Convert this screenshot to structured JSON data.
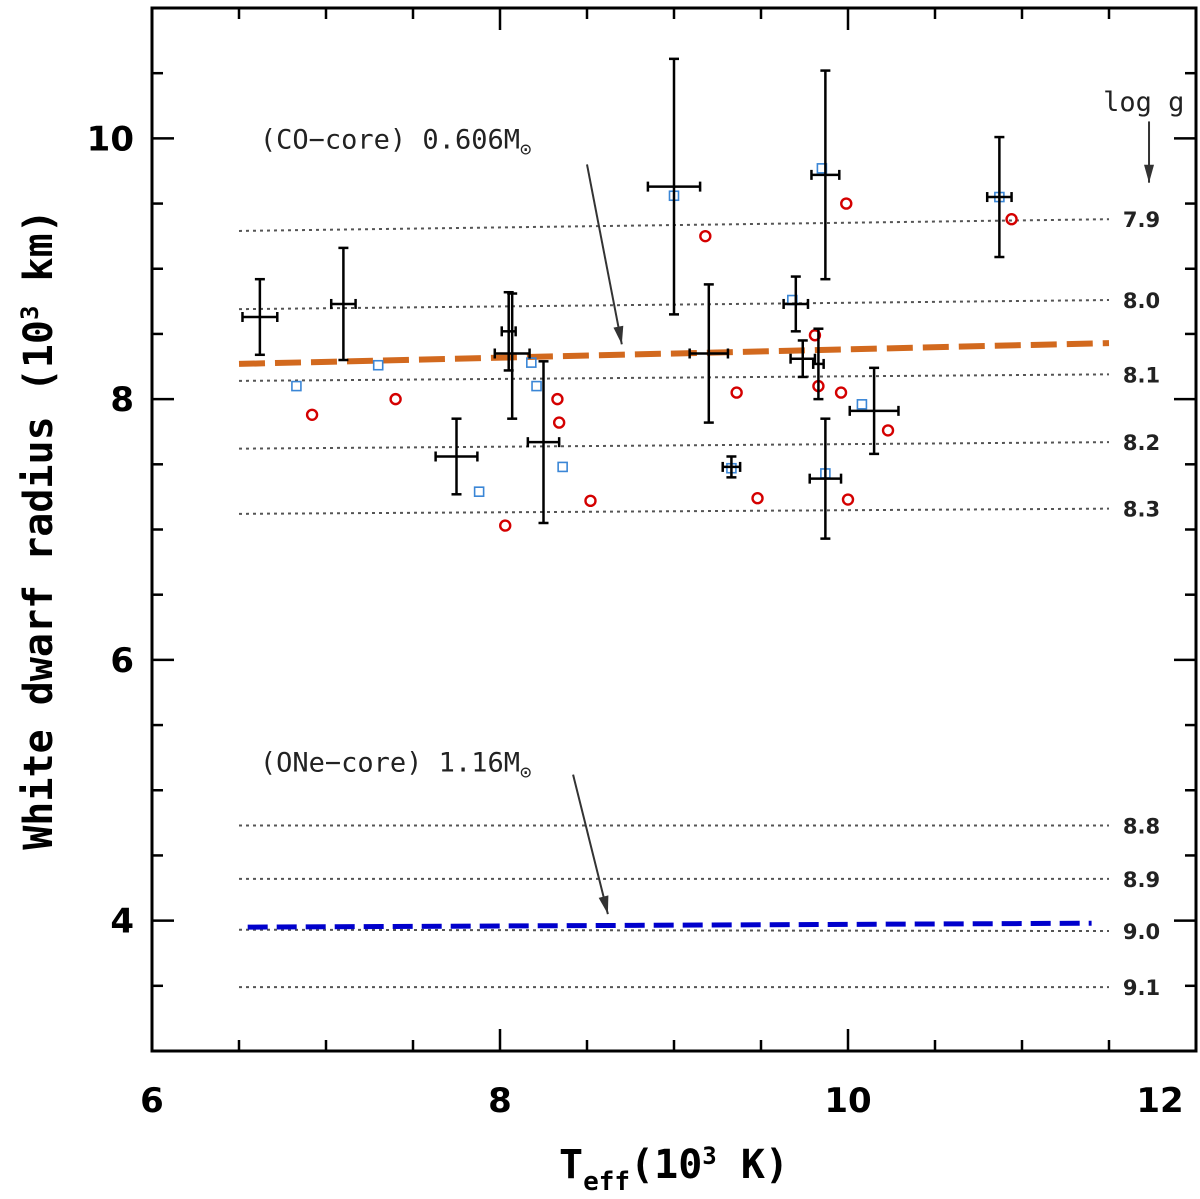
{
  "chart_data": {
    "type": "scatter",
    "title": "",
    "xlabel": "T_eff(10^3 K)",
    "xlabel_main": "T",
    "xlabel_sub": "eff",
    "xlabel_rest_a": "(10",
    "xlabel_sup": "3",
    "xlabel_rest_b": " K)",
    "ylabel": "White dwarf radius (10^3 km)",
    "ylabel_a": "White dwarf radius (10",
    "ylabel_sup": "3",
    "ylabel_b": " km)",
    "xlim": [
      6,
      12
    ],
    "ylim": [
      3,
      11
    ],
    "xticks": [
      6,
      8,
      10,
      12
    ],
    "yticks": [
      4,
      6,
      8,
      10
    ],
    "measurements": [
      {
        "x": 6.62,
        "y": 8.63,
        "xerr": 0.1,
        "yerr_lo": 0.29,
        "yerr_hi": 0.29
      },
      {
        "x": 7.1,
        "y": 8.73,
        "xerr": 0.07,
        "yerr_lo": 0.43,
        "yerr_hi": 0.43
      },
      {
        "x": 7.75,
        "y": 7.56,
        "xerr": 0.12,
        "yerr_lo": 0.29,
        "yerr_hi": 0.29
      },
      {
        "x": 8.05,
        "y": 8.52,
        "xerr": 0.04,
        "yerr_lo": 0.3,
        "yerr_hi": 0.3
      },
      {
        "x": 8.07,
        "y": 8.35,
        "xerr": 0.1,
        "yerr_lo": 0.5,
        "yerr_hi": 0.46
      },
      {
        "x": 8.25,
        "y": 7.67,
        "xerr": 0.09,
        "yerr_lo": 0.62,
        "yerr_hi": 0.62
      },
      {
        "x": 9.0,
        "y": 9.63,
        "xerr": 0.15,
        "yerr_lo": 0.98,
        "yerr_hi": 0.98
      },
      {
        "x": 9.2,
        "y": 8.35,
        "xerr": 0.11,
        "yerr_lo": 0.53,
        "yerr_hi": 0.53
      },
      {
        "x": 9.33,
        "y": 7.48,
        "xerr": 0.05,
        "yerr_lo": 0.08,
        "yerr_hi": 0.08
      },
      {
        "x": 9.7,
        "y": 8.73,
        "xerr": 0.07,
        "yerr_lo": 0.21,
        "yerr_hi": 0.21
      },
      {
        "x": 9.74,
        "y": 8.31,
        "xerr": 0.07,
        "yerr_lo": 0.14,
        "yerr_hi": 0.14
      },
      {
        "x": 9.83,
        "y": 8.27,
        "xerr": 0.03,
        "yerr_lo": 0.27,
        "yerr_hi": 0.27
      },
      {
        "x": 9.87,
        "y": 9.72,
        "xerr": 0.08,
        "yerr_lo": 0.8,
        "yerr_hi": 0.8
      },
      {
        "x": 9.87,
        "y": 7.39,
        "xerr": 0.09,
        "yerr_lo": 0.46,
        "yerr_hi": 0.46
      },
      {
        "x": 10.15,
        "y": 7.91,
        "xerr": 0.14,
        "yerr_lo": 0.33,
        "yerr_hi": 0.33
      },
      {
        "x": 10.87,
        "y": 9.55,
        "xerr": 0.07,
        "yerr_lo": 0.46,
        "yerr_hi": 0.46
      }
    ],
    "model_blue_squares": [
      {
        "x": 6.83,
        "y": 8.1
      },
      {
        "x": 7.3,
        "y": 8.26
      },
      {
        "x": 7.88,
        "y": 7.29
      },
      {
        "x": 8.18,
        "y": 8.28
      },
      {
        "x": 8.21,
        "y": 8.1
      },
      {
        "x": 8.36,
        "y": 7.48
      },
      {
        "x": 9.0,
        "y": 9.56
      },
      {
        "x": 9.33,
        "y": 7.47
      },
      {
        "x": 9.68,
        "y": 8.76
      },
      {
        "x": 9.85,
        "y": 9.77
      },
      {
        "x": 9.87,
        "y": 7.43
      },
      {
        "x": 10.08,
        "y": 7.96
      },
      {
        "x": 10.87,
        "y": 9.55
      }
    ],
    "model_red_circles": [
      {
        "x": 6.92,
        "y": 7.88
      },
      {
        "x": 7.4,
        "y": 8.0
      },
      {
        "x": 8.03,
        "y": 7.03
      },
      {
        "x": 8.33,
        "y": 8.0
      },
      {
        "x": 8.34,
        "y": 7.82
      },
      {
        "x": 8.52,
        "y": 7.22
      },
      {
        "x": 9.18,
        "y": 9.25
      },
      {
        "x": 9.36,
        "y": 8.05
      },
      {
        "x": 9.48,
        "y": 7.24
      },
      {
        "x": 9.81,
        "y": 8.49
      },
      {
        "x": 9.83,
        "y": 8.1
      },
      {
        "x": 9.96,
        "y": 8.05
      },
      {
        "x": 9.99,
        "y": 9.5
      },
      {
        "x": 10.0,
        "y": 7.23
      },
      {
        "x": 10.23,
        "y": 7.76
      },
      {
        "x": 10.94,
        "y": 9.38
      }
    ],
    "logg_curves": [
      {
        "label": "7.9",
        "y0": 9.29,
        "y1": 9.38
      },
      {
        "label": "8.0",
        "y0": 8.69,
        "y1": 8.76
      },
      {
        "label": "8.1",
        "y0": 8.14,
        "y1": 8.19
      },
      {
        "label": "8.2",
        "y0": 7.62,
        "y1": 7.67
      },
      {
        "label": "8.3",
        "y0": 7.12,
        "y1": 7.16
      },
      {
        "label": "8.8",
        "y0": 4.73,
        "y1": 4.73
      },
      {
        "label": "8.9",
        "y0": 4.32,
        "y1": 4.32
      },
      {
        "label": "9.0",
        "y0": 3.93,
        "y1": 3.92
      },
      {
        "label": "9.1",
        "y0": 3.49,
        "y1": 3.49
      }
    ],
    "logg_x_range": [
      6.5,
      11.5
    ],
    "co_core_track": {
      "x0": 6.5,
      "y0": 8.27,
      "x1": 11.5,
      "y1": 8.43,
      "color": "#d2691e"
    },
    "one_core_track": {
      "x0": 6.55,
      "y0": 3.95,
      "x1": 11.4,
      "y1": 3.98,
      "color": "#0000cc"
    },
    "annotations": {
      "co_label": "(CO−core) 0.606M",
      "co_pos": [
        6.62,
        10.0
      ],
      "co_arrow": [
        [
          8.5,
          9.8
        ],
        [
          8.7,
          8.42
        ]
      ],
      "one_label": "(ONe−core) 1.16M",
      "one_pos": [
        6.62,
        5.22
      ],
      "one_arrow": [
        [
          8.42,
          5.12
        ],
        [
          8.62,
          4.05
        ]
      ],
      "sun_symbol": "⊙",
      "logg_header": "log g",
      "logg_header_pos": [
        11.7,
        10.27
      ],
      "logg_arrow": [
        [
          11.73,
          10.13
        ],
        [
          11.73,
          9.66
        ]
      ]
    },
    "colors": {
      "blue_square": "#3a86d6",
      "red_circle": "#d40000",
      "gridline": "#555555",
      "errorbar": "#000000"
    }
  }
}
